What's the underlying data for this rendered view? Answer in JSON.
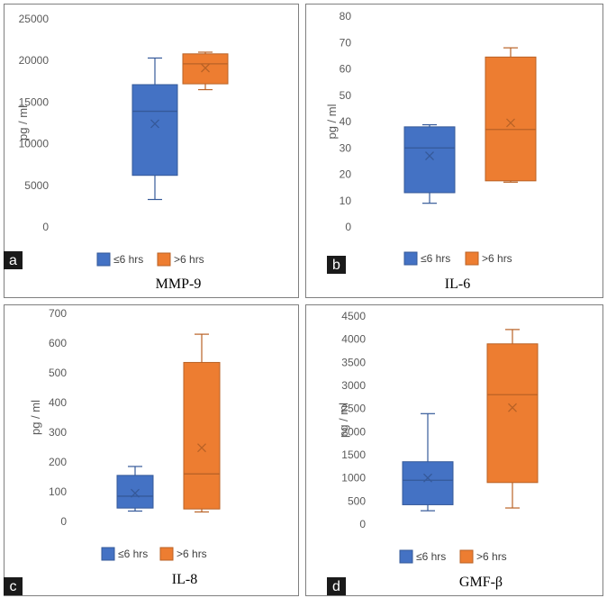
{
  "chart_data": [
    {
      "panel_label": "a",
      "type": "box",
      "title": "MMP-9",
      "ylabel": "pg / ml",
      "ylim": [
        0,
        25000
      ],
      "yticks": [
        "0",
        "5000",
        "10000",
        "15000",
        "20000",
        "25000"
      ],
      "series": [
        {
          "name": "≤6 hrs",
          "color": "#4472c4",
          "min": 3300,
          "q1": 6200,
          "median": 13900,
          "q3": 17100,
          "max": 20300,
          "mean": 12400
        },
        {
          "name": ">6 hrs",
          "color": "#ed7d31",
          "min": 16500,
          "q1": 17200,
          "median": 19600,
          "q3": 20800,
          "max": 21000,
          "mean": 19100
        }
      ]
    },
    {
      "panel_label": "b",
      "type": "box",
      "title": "IL-6",
      "ylabel": "pg / ml",
      "ylim": [
        0,
        80
      ],
      "yticks": [
        "0",
        "10",
        "20",
        "30",
        "40",
        "50",
        "60",
        "70",
        "80"
      ],
      "series": [
        {
          "name": "≤6 hrs",
          "color": "#4472c4",
          "min": 9,
          "q1": 13,
          "median": 30,
          "q3": 38,
          "max": 38.8,
          "mean": 27
        },
        {
          "name": ">6 hrs",
          "color": "#ed7d31",
          "min": 17,
          "q1": 17.5,
          "median": 37,
          "q3": 64.5,
          "max": 68,
          "mean": 39.5
        }
      ]
    },
    {
      "panel_label": "c",
      "type": "box",
      "title": "IL-8",
      "ylabel": "pg / ml",
      "ylim": [
        0,
        700
      ],
      "yticks": [
        "0",
        "100",
        "200",
        "300",
        "400",
        "500",
        "600",
        "700"
      ],
      "series": [
        {
          "name": "≤6 hrs",
          "color": "#4472c4",
          "min": 35,
          "q1": 45,
          "median": 85,
          "q3": 155,
          "max": 185,
          "mean": 95
        },
        {
          "name": ">6 hrs",
          "color": "#ed7d31",
          "min": 32,
          "q1": 42,
          "median": 160,
          "q3": 535,
          "max": 630,
          "mean": 248
        }
      ]
    },
    {
      "panel_label": "d",
      "type": "box",
      "title": "GMF-β",
      "ylabel": "pg / ml",
      "ylim": [
        0,
        4500
      ],
      "yticks": [
        "0",
        "500",
        "1000",
        "1500",
        "2000",
        "2500",
        "3000",
        "3500",
        "4000",
        "4500"
      ],
      "series": [
        {
          "name": "≤6 hrs",
          "color": "#4472c4",
          "min": 290,
          "q1": 420,
          "median": 950,
          "q3": 1350,
          "max": 2390,
          "mean": 1000
        },
        {
          "name": ">6 hrs",
          "color": "#ed7d31",
          "min": 350,
          "q1": 900,
          "median": 2800,
          "q3": 3900,
          "max": 4210,
          "mean": 2520
        }
      ]
    }
  ]
}
